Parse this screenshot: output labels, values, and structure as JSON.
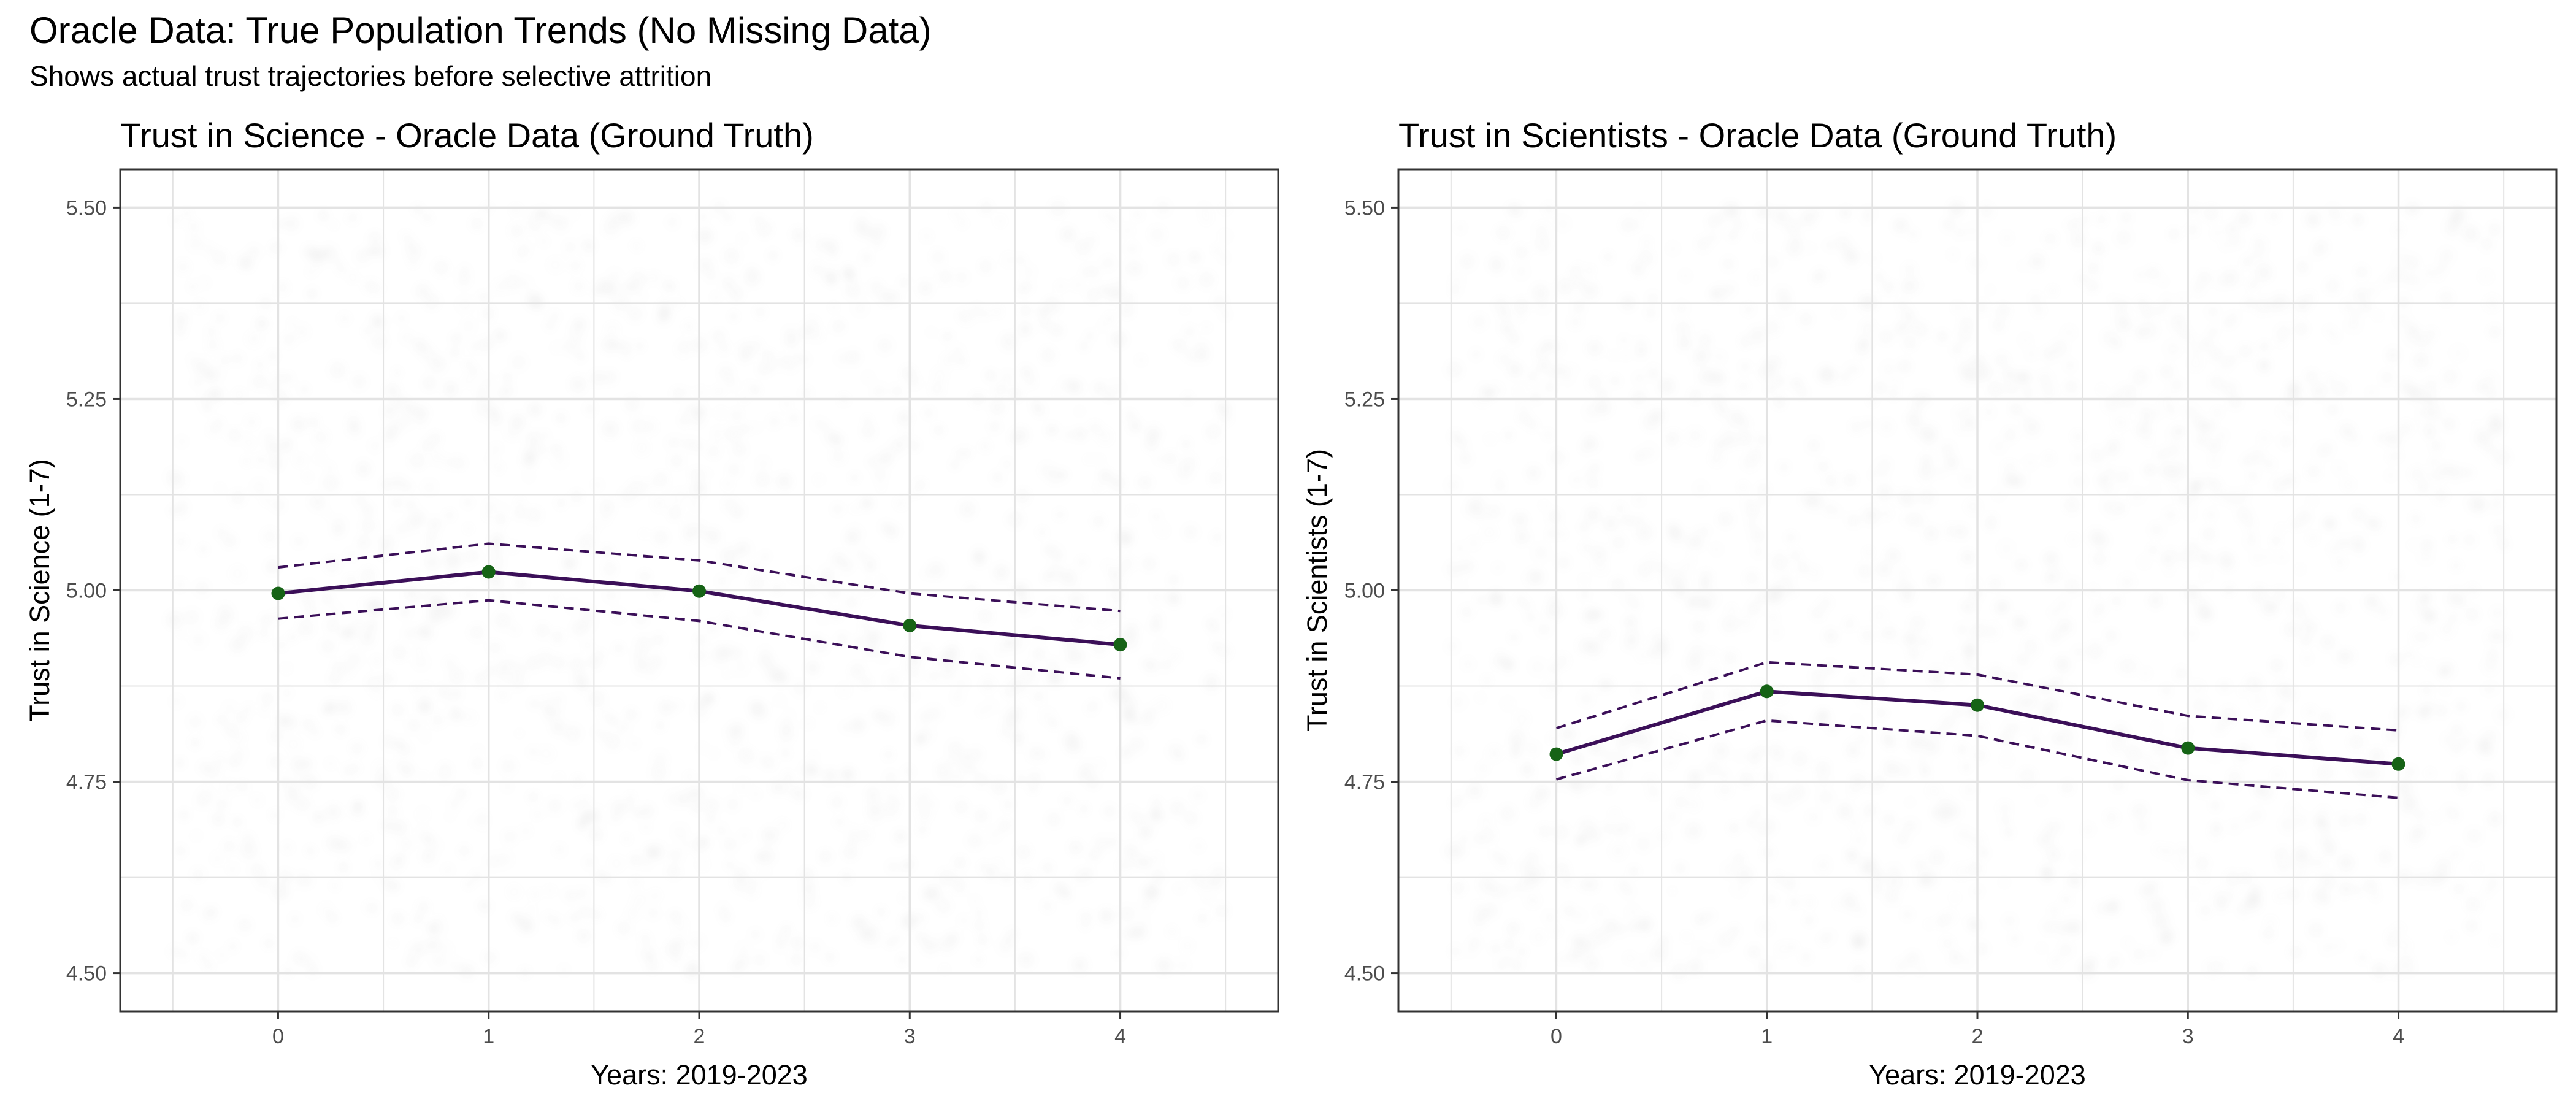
{
  "title": "Oracle Data: True Population Trends (No Missing Data)",
  "subtitle": "Shows actual trust trajectories before selective attrition",
  "colors": {
    "line": "#3b0f58",
    "point": "#166316",
    "grid": "#e3e3e3",
    "panel_border": "#333333",
    "tick_text": "#4d4d4d"
  },
  "chart_data": [
    {
      "type": "line",
      "title": "Trust in Science - Oracle Data (Ground Truth)",
      "xlabel": "Years: 2019-2023",
      "ylabel": "Trust in Science (1-7)",
      "x": [
        0,
        1,
        2,
        3,
        4
      ],
      "xlim": [
        -0.75,
        4.75
      ],
      "ylim": [
        4.45,
        5.55
      ],
      "x_ticks": [
        "0",
        "1",
        "2",
        "3",
        "4"
      ],
      "y_ticks": [
        "4.50",
        "4.75",
        "5.00",
        "5.25",
        "5.50"
      ],
      "grid": true,
      "series": [
        {
          "role": "mean",
          "style": "solid",
          "markers": true,
          "values": [
            4.996,
            5.024,
            4.999,
            4.954,
            4.929
          ]
        },
        {
          "role": "upper",
          "style": "dashed",
          "markers": false,
          "values": [
            5.03,
            5.061,
            5.039,
            4.996,
            4.973
          ]
        },
        {
          "role": "lower",
          "style": "dashed",
          "markers": false,
          "values": [
            4.963,
            4.987,
            4.96,
            4.913,
            4.885
          ]
        }
      ]
    },
    {
      "type": "line",
      "title": "Trust in Scientists - Oracle Data (Ground Truth)",
      "xlabel": "Years: 2019-2023",
      "ylabel": "Trust in Scientists (1-7)",
      "x": [
        0,
        1,
        2,
        3,
        4
      ],
      "xlim": [
        -0.75,
        4.75
      ],
      "ylim": [
        4.45,
        5.55
      ],
      "x_ticks": [
        "0",
        "1",
        "2",
        "3",
        "4"
      ],
      "y_ticks": [
        "4.50",
        "4.75",
        "5.00",
        "5.25",
        "5.50"
      ],
      "grid": true,
      "series": [
        {
          "role": "mean",
          "style": "solid",
          "markers": true,
          "values": [
            4.786,
            4.868,
            4.85,
            4.794,
            4.773
          ]
        },
        {
          "role": "upper",
          "style": "dashed",
          "markers": false,
          "values": [
            4.82,
            4.906,
            4.89,
            4.836,
            4.817
          ]
        },
        {
          "role": "lower",
          "style": "dashed",
          "markers": false,
          "values": [
            4.753,
            4.83,
            4.81,
            4.752,
            4.729
          ]
        }
      ]
    }
  ]
}
